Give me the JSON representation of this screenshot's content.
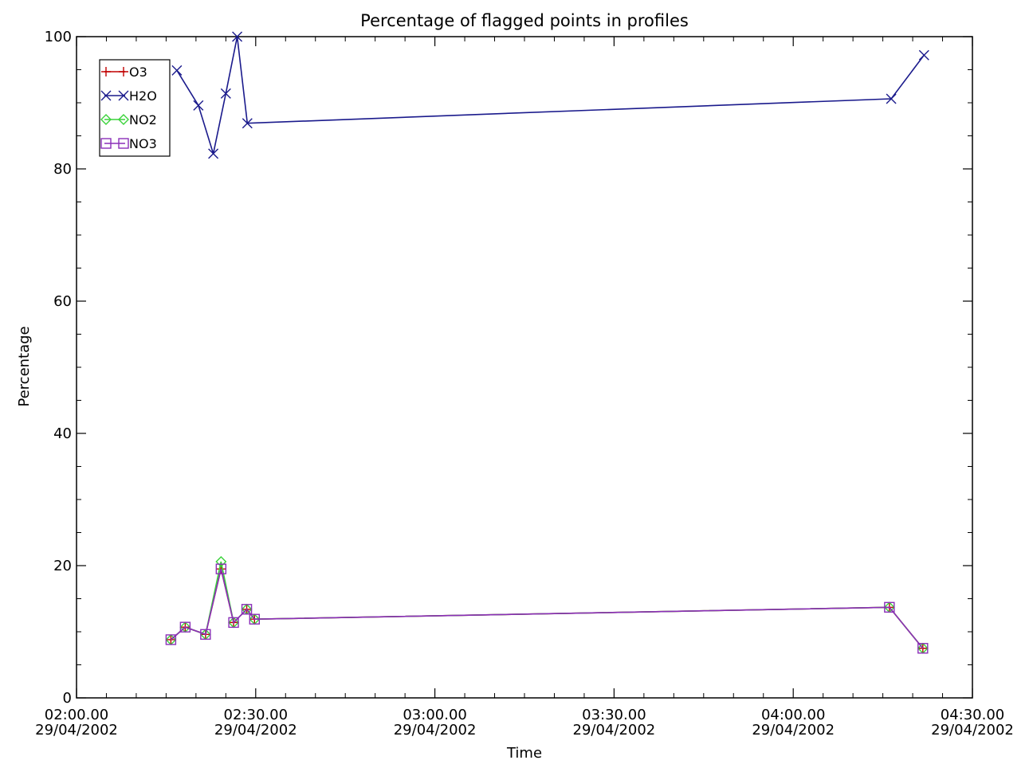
{
  "chart_data": {
    "type": "line",
    "title": "Percentage of flagged points in profiles",
    "xlabel": "Time",
    "ylabel": "Percentage",
    "xlim": [
      "02:00:00 29/04/2002",
      "04:30:00 29/04/2002"
    ],
    "ylim": [
      0,
      100
    ],
    "yticks": [
      "0",
      "20",
      "40",
      "60",
      "80",
      "100"
    ],
    "xticks": [
      {
        "time": "02:00.00",
        "date": "29/04/2002"
      },
      {
        "time": "02:30.00",
        "date": "29/04/2002"
      },
      {
        "time": "03:00.00",
        "date": "29/04/2002"
      },
      {
        "time": "03:30.00",
        "date": "29/04/2002"
      },
      {
        "time": "04:00.00",
        "date": "29/04/2002"
      },
      {
        "time": "04:30.00",
        "date": "29/04/2002"
      }
    ],
    "grid": false,
    "legend_position": "top-left",
    "x_units": "minutes after 02:00 on 29/04/2002",
    "series": [
      {
        "name": "O3",
        "color": "#c00000",
        "marker": "plus",
        "x": [
          15.8,
          18.2,
          21.6,
          24.2,
          26.3,
          28.5,
          29.8,
          136.1,
          141.7
        ],
        "y": [
          8.8,
          10.7,
          9.6,
          19.5,
          11.4,
          13.4,
          11.9,
          13.7,
          7.5
        ]
      },
      {
        "name": "H2O",
        "color": "#1a1a8c",
        "marker": "x",
        "x": [
          16.8,
          20.4,
          22.9,
          25.0,
          26.9,
          28.6,
          136.4,
          141.9
        ],
        "y": [
          94.9,
          89.6,
          82.3,
          91.4,
          100.0,
          86.9,
          90.6,
          97.2
        ]
      },
      {
        "name": "NO2",
        "color": "#3ad23a",
        "marker": "diamond",
        "x": [
          15.8,
          18.2,
          21.6,
          24.2,
          26.3,
          28.5,
          29.8,
          136.1,
          141.7
        ],
        "y": [
          8.8,
          10.7,
          9.6,
          20.6,
          11.4,
          13.4,
          11.9,
          13.7,
          7.5
        ]
      },
      {
        "name": "NO3",
        "color": "#8a2fb8",
        "marker": "square",
        "x": [
          15.8,
          18.2,
          21.6,
          24.2,
          26.3,
          28.5,
          29.8,
          136.1,
          141.7
        ],
        "y": [
          8.8,
          10.7,
          9.6,
          19.5,
          11.4,
          13.4,
          11.9,
          13.7,
          7.5
        ]
      }
    ]
  }
}
